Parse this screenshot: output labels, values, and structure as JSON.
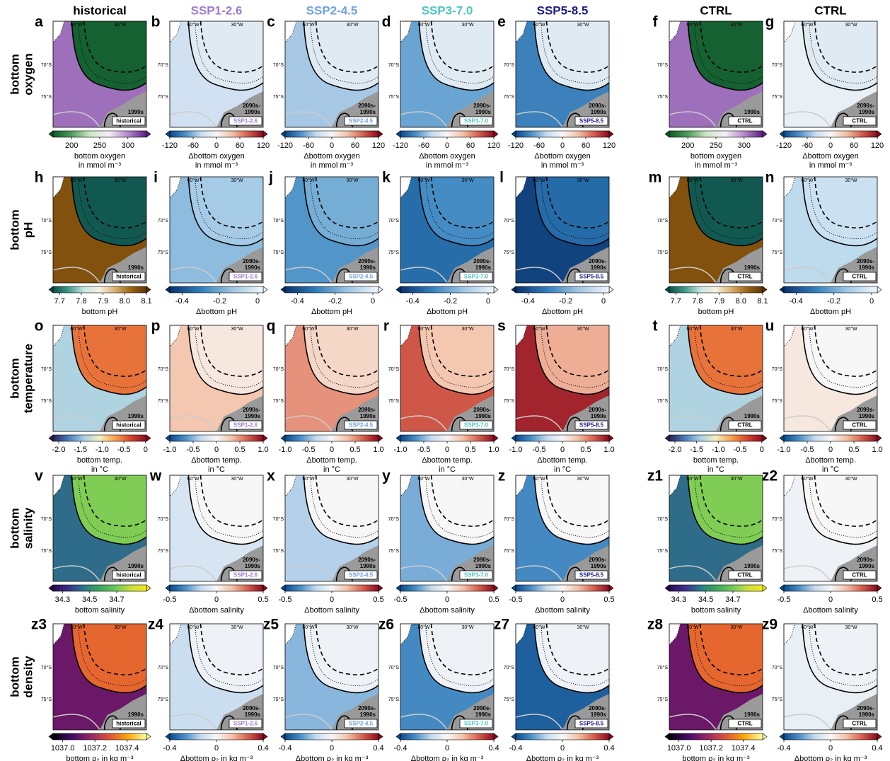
{
  "columns": [
    {
      "title": "historical",
      "color": "#000000",
      "tag": "historical",
      "period": [
        "1990s"
      ],
      "bar": "abs"
    },
    {
      "title": "SSP1-2.6",
      "color": "#9d7bd8",
      "tag": "SSP1-2.6",
      "period": [
        "2090s-",
        "1990s"
      ],
      "bar": "delta"
    },
    {
      "title": "SSP2-4.5",
      "color": "#6fa0e6",
      "tag": "SSP2-4.5",
      "period": [
        "2090s-",
        "1990s"
      ],
      "bar": "delta"
    },
    {
      "title": "SSP3-7.0",
      "color": "#4cc8c0",
      "tag": "SSP3-7.0",
      "period": [
        "2090s-",
        "1990s"
      ],
      "bar": "delta"
    },
    {
      "title": "SSP5-8.5",
      "color": "#1a1a8c",
      "tag": "SSP5-8.5",
      "period": [
        "2090s-",
        "1990s"
      ],
      "bar": "delta"
    },
    {
      "title": "CTRL",
      "color": "#000000",
      "tag": "CTRL",
      "period": [
        "1990s"
      ],
      "bar": "abs"
    },
    {
      "title": "CTRL",
      "color": "#000000",
      "tag": "CTRL",
      "period": [
        "2090s-",
        "1990s"
      ],
      "bar": "delta"
    }
  ],
  "map_labels": {
    "lon": [
      "60°W",
      "30°W"
    ],
    "lat": [
      "70°S",
      "75°S"
    ]
  },
  "rows": [
    {
      "label": [
        "bottom",
        "oxygen"
      ],
      "letters": [
        "a",
        "b",
        "c",
        "d",
        "e",
        "f",
        "g"
      ],
      "colorbars": {
        "abs": {
          "lim": [
            167,
            333
          ],
          "ticks": [
            200,
            250,
            300
          ],
          "label": [
            "bottom oxygen",
            "in mmol m⁻³"
          ],
          "colors": [
            "#0f5a2c",
            "#4f9e5c",
            "#cfe8c6",
            "#f4eff7",
            "#b48acb",
            "#5c1f86"
          ]
        },
        "delta": {
          "lim": [
            -120,
            120
          ],
          "ticks": [
            -120,
            -60,
            0,
            60,
            120
          ],
          "label": [
            "Δbottom oxygen",
            "in mmol m⁻³"
          ],
          "colors": [
            "#0b4a8c",
            "#4a90c8",
            "#c6dbef",
            "#f7f7f7",
            "#f4c2a8",
            "#d6604d",
            "#8b0a1f"
          ]
        }
      }
    },
    {
      "label": [
        "bottom",
        "pH"
      ],
      "letters": [
        "h",
        "i",
        "j",
        "k",
        "l",
        "m",
        "n"
      ],
      "colorbars": {
        "abs": {
          "lim": [
            7.67,
            8.1
          ],
          "ticks": [
            7.7,
            7.8,
            7.9,
            {
              "value": 8.0,
              "label": "8.0"
            },
            8.1
          ],
          "label": [
            "bottom pH"
          ],
          "colors": [
            "#0b4f48",
            "#3f9a8a",
            "#c9e6df",
            "#f5f0e0",
            "#d8b06a",
            "#9c6413",
            "#5a3505"
          ]
        },
        "delta": {
          "lim": [
            -0.465,
            0.03
          ],
          "ticks": [
            -0.4,
            -0.2,
            0
          ],
          "label": [
            "Δbottom pH"
          ],
          "colors": [
            "#08306b",
            "#2f7ebc",
            "#9cc6e3",
            "#f2f7fd"
          ]
        }
      }
    },
    {
      "label": [
        "bottom",
        "temperature"
      ],
      "letters": [
        "o",
        "p",
        "q",
        "r",
        "s",
        "t",
        "u"
      ],
      "colorbars": {
        "abs": {
          "lim": [
            -2.13,
            0.02
          ],
          "ticks": [
            {
              "value": -2.0,
              "label": "-2.0"
            },
            -1.5,
            {
              "value": -1.0,
              "label": "-1.0"
            },
            -0.5,
            0
          ],
          "label": [
            "bottom temp.",
            "in °C"
          ],
          "colors": [
            "#2a2057",
            "#4b7dbb",
            "#a8d0e6",
            "#f6f0c0",
            "#f8a04b",
            "#d6452a",
            "#8b0a1f"
          ]
        },
        "delta": {
          "lim": [
            -1,
            1
          ],
          "ticks": [
            {
              "value": -1.0,
              "label": "-1.0"
            },
            -0.5,
            0,
            0.5,
            {
              "value": 1.0,
              "label": "1.0"
            }
          ],
          "label": [
            "Δbottom temp.",
            "in °C"
          ],
          "colors": [
            "#0b4a8c",
            "#4a90c8",
            "#c6dbef",
            "#f7f7f7",
            "#f4c2a8",
            "#d6604d",
            "#8b0a1f"
          ]
        }
      }
    },
    {
      "label": [
        "bottom",
        "salinity"
      ],
      "letters": [
        "v",
        "w",
        "x",
        "y",
        "z",
        "z1",
        "z2"
      ],
      "colorbars": {
        "abs": {
          "lim": [
            34.23,
            34.92
          ],
          "ticks": [
            34.3,
            34.5,
            34.7
          ],
          "label": [
            "bottom salinity"
          ],
          "colors": [
            "#2a0a52",
            "#3b2f8a",
            "#2b7b8a",
            "#3aa85b",
            "#6cc95a",
            "#c9df3a",
            "#f2ea1f"
          ]
        },
        "delta": {
          "lim": [
            -0.5,
            0.5
          ],
          "ticks": [
            -0.5,
            0,
            0.5
          ],
          "label": [
            "Δbottom salinity"
          ],
          "colors": [
            "#0b4a8c",
            "#4a90c8",
            "#c6dbef",
            "#f7f7f7",
            "#f4c2a8",
            "#d6604d",
            "#8b0a1f"
          ]
        }
      }
    },
    {
      "label": [
        "bottom",
        "density"
      ],
      "letters": [
        "z3",
        "z4",
        "z5",
        "z6",
        "z7",
        "z8",
        "z9"
      ],
      "colorbars": {
        "abs": {
          "lim": [
            1036.94,
            1037.52
          ],
          "ticks": [
            {
              "value": 1037.0,
              "label": "1037.0"
            },
            1037.2,
            1037.4
          ],
          "label": [
            "bottom ρ₂ in kg m⁻³"
          ],
          "colors": [
            "#000004",
            "#420a68",
            "#932667",
            "#dd513a",
            "#fca50a",
            "#fcffa4"
          ]
        },
        "delta": {
          "lim": [
            -0.4,
            0.4
          ],
          "ticks": [
            -0.4,
            0,
            0.4
          ],
          "label": [
            "Δbottom ρ₂ in kg m⁻³"
          ],
          "colors": [
            "#0b4a8c",
            "#4a90c8",
            "#c6dbef",
            "#f7f7f7",
            "#f4c2a8",
            "#d6604d",
            "#8b0a1f"
          ]
        }
      }
    }
  ]
}
